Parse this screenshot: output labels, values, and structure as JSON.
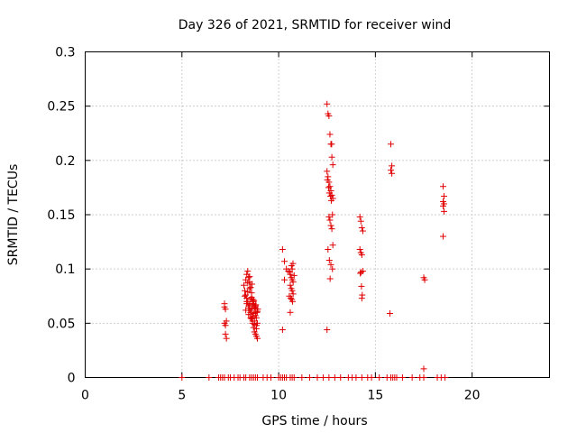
{
  "chart_data": {
    "type": "scatter",
    "title": "Day 326 of 2021, SRMTID for receiver wind",
    "xlabel": "GPS time / hours",
    "ylabel": "SRMTID / TECUs",
    "xlim": [
      0,
      24
    ],
    "ylim": [
      0,
      0.3
    ],
    "x_ticks": [
      0,
      5,
      10,
      15,
      20
    ],
    "y_ticks": [
      0,
      0.05,
      0.1,
      0.15,
      0.2,
      0.25,
      0.3
    ],
    "x_tick_labels": [
      "0",
      "5",
      "10",
      "15",
      "20"
    ],
    "y_tick_labels": [
      "0",
      "0.05",
      "0.1",
      "0.15",
      "0.2",
      "0.25",
      "0.3"
    ],
    "grid": true,
    "marker": "+",
    "color": "#e00000",
    "series": [
      {
        "name": "SRMTID",
        "x": [
          7.2,
          7.25,
          7.3,
          7.2,
          7.25,
          7.3,
          7.2,
          7.25,
          8.2,
          8.25,
          8.3,
          8.35,
          8.4,
          8.45,
          8.5,
          8.55,
          8.6,
          8.65,
          8.7,
          8.75,
          8.8,
          8.85,
          8.9,
          8.3,
          8.35,
          8.4,
          8.45,
          8.5,
          8.55,
          8.6,
          8.65,
          8.7,
          8.75,
          8.8,
          8.85,
          8.9,
          8.25,
          8.35,
          8.45,
          8.55,
          8.65,
          8.75,
          8.85,
          8.4,
          8.5,
          8.6,
          8.7,
          8.8,
          8.3,
          8.45,
          8.55,
          8.65,
          8.75,
          8.85,
          8.35,
          8.5,
          8.6,
          8.7,
          8.8,
          8.9,
          8.4,
          8.55,
          8.65,
          8.78,
          8.88,
          8.5,
          8.62,
          8.72,
          8.82,
          8.92,
          10.2,
          10.3,
          10.4,
          10.5,
          10.6,
          10.65,
          10.7,
          10.75,
          10.6,
          10.65,
          10.7,
          10.75,
          10.55,
          10.62,
          10.68,
          10.72,
          10.8,
          10.58,
          10.66,
          10.74,
          10.6,
          10.7,
          10.2,
          10.3,
          12.5,
          12.55,
          12.6,
          12.65,
          12.7,
          12.75,
          12.8,
          12.5,
          12.55,
          12.6,
          12.65,
          12.7,
          12.75,
          12.8,
          12.52,
          12.58,
          12.62,
          12.68,
          12.72,
          12.78,
          12.6,
          12.65,
          12.7,
          12.75,
          12.8,
          12.55,
          12.62,
          12.7,
          12.78,
          12.5,
          12.66,
          12.74,
          14.2,
          14.25,
          14.3,
          14.35,
          14.2,
          14.25,
          14.3,
          14.35,
          14.22,
          14.28,
          14.32,
          14.3,
          14.26,
          15.8,
          15.85,
          15.8,
          15.85,
          15.75,
          17.5,
          17.55,
          17.5,
          18.5,
          18.55,
          18.5,
          18.55,
          18.5,
          18.55,
          18.5
        ],
        "y": [
          0.068,
          0.063,
          0.052,
          0.05,
          0.04,
          0.036,
          0.065,
          0.048,
          0.085,
          0.08,
          0.09,
          0.095,
          0.098,
          0.092,
          0.088,
          0.083,
          0.078,
          0.072,
          0.068,
          0.065,
          0.06,
          0.055,
          0.05,
          0.076,
          0.073,
          0.07,
          0.066,
          0.062,
          0.058,
          0.054,
          0.05,
          0.046,
          0.042,
          0.04,
          0.038,
          0.036,
          0.075,
          0.068,
          0.064,
          0.06,
          0.056,
          0.052,
          0.048,
          0.087,
          0.082,
          0.074,
          0.07,
          0.066,
          0.062,
          0.058,
          0.055,
          0.052,
          0.049,
          0.045,
          0.07,
          0.067,
          0.063,
          0.059,
          0.057,
          0.061,
          0.079,
          0.072,
          0.068,
          0.064,
          0.06,
          0.093,
          0.086,
          0.071,
          0.067,
          0.063,
          0.118,
          0.107,
          0.1,
          0.098,
          0.095,
          0.092,
          0.09,
          0.088,
          0.085,
          0.082,
          0.08,
          0.077,
          0.075,
          0.073,
          0.072,
          0.07,
          0.094,
          0.097,
          0.103,
          0.105,
          0.06,
          0.1,
          0.044,
          0.09,
          0.252,
          0.243,
          0.241,
          0.224,
          0.215,
          0.203,
          0.196,
          0.19,
          0.185,
          0.18,
          0.176,
          0.172,
          0.168,
          0.165,
          0.182,
          0.175,
          0.17,
          0.167,
          0.163,
          0.15,
          0.148,
          0.145,
          0.14,
          0.137,
          0.122,
          0.118,
          0.108,
          0.104,
          0.1,
          0.044,
          0.091,
          0.215,
          0.148,
          0.144,
          0.138,
          0.135,
          0.118,
          0.115,
          0.113,
          0.098,
          0.096,
          0.084,
          0.076,
          0.073,
          0.097,
          0.215,
          0.195,
          0.191,
          0.188,
          0.059,
          0.092,
          0.09,
          0.008,
          0.176,
          0.167,
          0.162,
          0.16,
          0.158,
          0.153,
          0.13
        ],
        "zero_x": [
          5.0,
          6.4,
          6.9,
          7.0,
          7.1,
          7.2,
          7.4,
          7.5,
          7.7,
          7.9,
          8.0,
          8.2,
          8.3,
          8.5,
          8.6,
          8.7,
          8.8,
          8.9,
          9.2,
          9.4,
          9.6,
          10.0,
          10.1,
          10.2,
          10.3,
          10.4,
          10.6,
          10.7,
          10.8,
          11.2,
          11.6,
          12.0,
          12.3,
          12.6,
          12.9,
          13.2,
          13.6,
          13.8,
          14.0,
          14.3,
          14.6,
          14.8,
          15.2,
          15.6,
          15.8,
          15.9,
          16.0,
          16.1,
          16.4,
          16.9,
          17.3,
          17.5,
          18.2,
          18.4,
          18.6
        ]
      }
    ]
  }
}
